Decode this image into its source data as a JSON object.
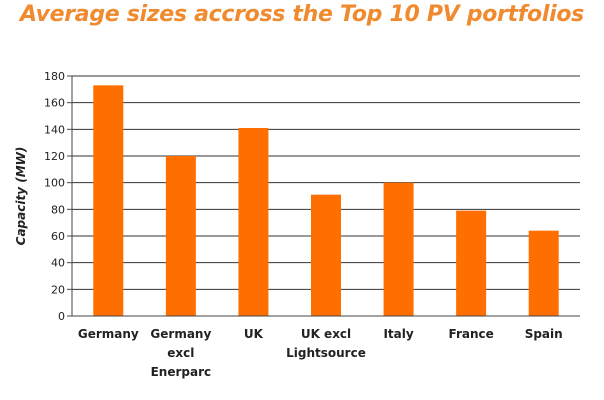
{
  "chart_data": {
    "type": "bar",
    "title": "Average sizes accross the Top 10 PV portfolios",
    "xlabel": "",
    "ylabel": "Capacity (MW)",
    "categories": [
      "Germany",
      "Germany excl Enerparc",
      "UK",
      "UK excl Lightsource",
      "Italy",
      "France",
      "Spain"
    ],
    "category_lines": [
      [
        "Germany"
      ],
      [
        "Germany",
        "excl",
        "Enerparc"
      ],
      [
        "UK"
      ],
      [
        "UK excl",
        "Lightsource"
      ],
      [
        "Italy"
      ],
      [
        "France"
      ],
      [
        "Spain"
      ]
    ],
    "values": [
      173,
      120,
      141,
      91,
      100,
      79,
      64
    ],
    "ylim": [
      0,
      180
    ],
    "yticks": [
      0,
      20,
      40,
      60,
      80,
      100,
      120,
      140,
      160,
      180
    ],
    "grid": true,
    "legend": "none",
    "colors": {
      "bar": "#ff6f00",
      "title": "#f08a2e",
      "grid": "#333333",
      "axis": "#444444"
    }
  }
}
